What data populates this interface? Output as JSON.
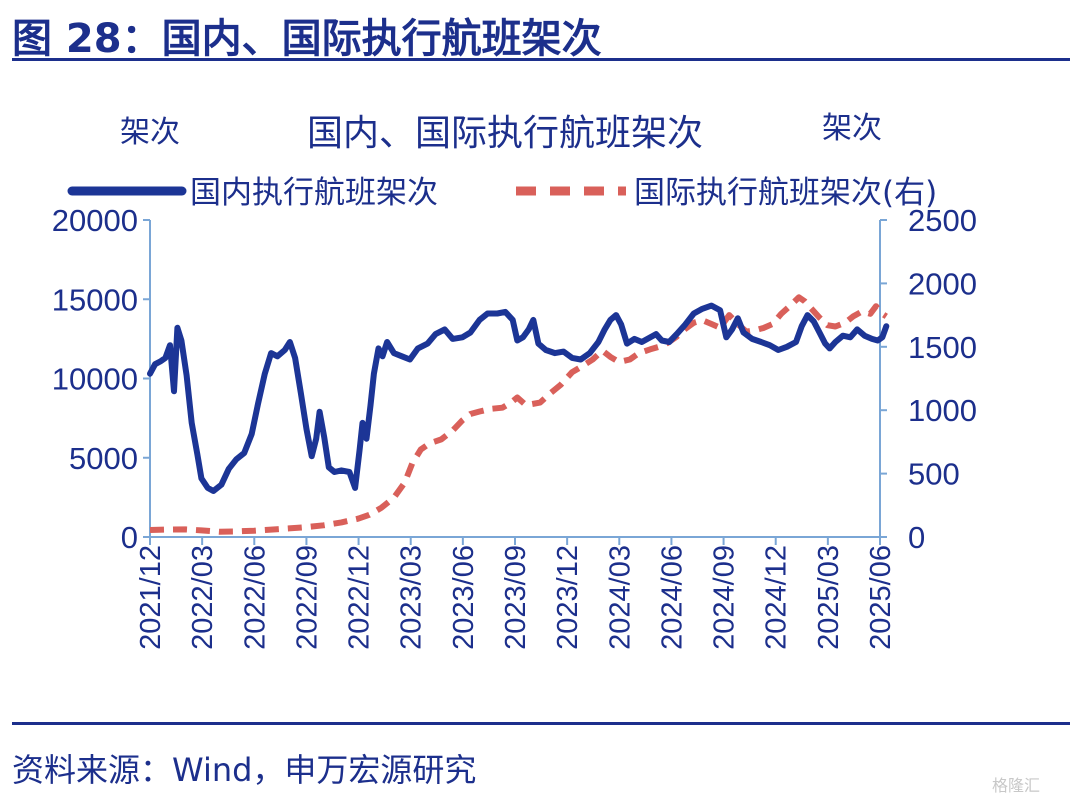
{
  "figure": {
    "title": "图 28：国内、国际执行航班架次",
    "source": "资料来源：Wind，申万宏源研究",
    "watermark": "格隆汇"
  },
  "colors": {
    "domestic": "#1c3596",
    "international": "#d9605a",
    "axis": "#7aa6d6",
    "text": "#1c2f8c"
  },
  "chart_data": {
    "type": "line",
    "title": "国内、国际执行航班架次",
    "ylabel_left": "架次",
    "ylabel_right": "架次",
    "legend_position": "top",
    "grid": false,
    "ylim_left": [
      0,
      20000
    ],
    "ylim_right": [
      0,
      2500
    ],
    "yticks_left": [
      "0",
      "5000",
      "10000",
      "15000",
      "20000"
    ],
    "yticks_right": [
      "0",
      "500",
      "1000",
      "1500",
      "2000",
      "2500"
    ],
    "xticks": [
      "2021/12",
      "2022/03",
      "2022/06",
      "2022/09",
      "2022/12",
      "2023/03",
      "2023/06",
      "2023/09",
      "2023/12",
      "2024/03",
      "2024/06",
      "2024/09",
      "2024/12",
      "2025/03",
      "2025/06"
    ],
    "series": [
      {
        "name": "国内执行航班架次",
        "axis": "left",
        "style": "solid",
        "points": [
          [
            "2021-12-01",
            10300
          ],
          [
            "2021-12-10",
            10900
          ],
          [
            "2021-12-20",
            11100
          ],
          [
            "2021-12-28",
            11300
          ],
          [
            "2022-01-05",
            12100
          ],
          [
            "2022-01-12",
            9200
          ],
          [
            "2022-01-18",
            13200
          ],
          [
            "2022-01-25",
            12400
          ],
          [
            "2022-02-03",
            10200
          ],
          [
            "2022-02-12",
            7200
          ],
          [
            "2022-02-22",
            5200
          ],
          [
            "2022-03-01",
            3700
          ],
          [
            "2022-03-12",
            3100
          ],
          [
            "2022-03-22",
            2900
          ],
          [
            "2022-04-05",
            3300
          ],
          [
            "2022-04-18",
            4300
          ],
          [
            "2022-05-01",
            4900
          ],
          [
            "2022-05-15",
            5300
          ],
          [
            "2022-05-28",
            6500
          ],
          [
            "2022-06-08",
            8400
          ],
          [
            "2022-06-20",
            10300
          ],
          [
            "2022-07-01",
            11600
          ],
          [
            "2022-07-12",
            11400
          ],
          [
            "2022-07-25",
            11800
          ],
          [
            "2022-08-03",
            12300
          ],
          [
            "2022-08-12",
            11300
          ],
          [
            "2022-08-22",
            9100
          ],
          [
            "2022-09-01",
            6800
          ],
          [
            "2022-09-10",
            5100
          ],
          [
            "2022-09-18",
            6200
          ],
          [
            "2022-09-24",
            7900
          ],
          [
            "2022-10-02",
            6300
          ],
          [
            "2022-10-10",
            4400
          ],
          [
            "2022-10-20",
            4100
          ],
          [
            "2022-11-01",
            4200
          ],
          [
            "2022-11-15",
            4100
          ],
          [
            "2022-11-25",
            3100
          ],
          [
            "2022-12-03",
            5500
          ],
          [
            "2022-12-08",
            7200
          ],
          [
            "2022-12-15",
            6200
          ],
          [
            "2022-12-22",
            8300
          ],
          [
            "2022-12-28",
            10300
          ],
          [
            "2023-01-05",
            11900
          ],
          [
            "2023-01-12",
            11400
          ],
          [
            "2023-01-20",
            12300
          ],
          [
            "2023-02-01",
            11600
          ],
          [
            "2023-02-15",
            11400
          ],
          [
            "2023-03-01",
            11200
          ],
          [
            "2023-03-15",
            11900
          ],
          [
            "2023-04-01",
            12200
          ],
          [
            "2023-04-15",
            12800
          ],
          [
            "2023-05-01",
            13100
          ],
          [
            "2023-05-15",
            12500
          ],
          [
            "2023-06-01",
            12600
          ],
          [
            "2023-06-15",
            12900
          ],
          [
            "2023-07-01",
            13700
          ],
          [
            "2023-07-15",
            14100
          ],
          [
            "2023-08-01",
            14100
          ],
          [
            "2023-08-15",
            14200
          ],
          [
            "2023-08-28",
            13700
          ],
          [
            "2023-09-05",
            12400
          ],
          [
            "2023-09-15",
            12600
          ],
          [
            "2023-09-25",
            13100
          ],
          [
            "2023-10-03",
            13700
          ],
          [
            "2023-10-12",
            12200
          ],
          [
            "2023-10-25",
            11800
          ],
          [
            "2023-11-10",
            11600
          ],
          [
            "2023-11-25",
            11700
          ],
          [
            "2023-12-10",
            11300
          ],
          [
            "2023-12-25",
            11200
          ],
          [
            "2024-01-10",
            11600
          ],
          [
            "2024-01-25",
            12300
          ],
          [
            "2024-02-05",
            13100
          ],
          [
            "2024-02-15",
            13700
          ],
          [
            "2024-02-25",
            14000
          ],
          [
            "2024-03-05",
            13400
          ],
          [
            "2024-03-15",
            12200
          ],
          [
            "2024-03-28",
            12500
          ],
          [
            "2024-04-10",
            12300
          ],
          [
            "2024-04-25",
            12600
          ],
          [
            "2024-05-05",
            12800
          ],
          [
            "2024-05-15",
            12400
          ],
          [
            "2024-05-28",
            12300
          ],
          [
            "2024-06-10",
            12800
          ],
          [
            "2024-06-25",
            13400
          ],
          [
            "2024-07-10",
            14100
          ],
          [
            "2024-07-25",
            14400
          ],
          [
            "2024-08-10",
            14600
          ],
          [
            "2024-08-25",
            14300
          ],
          [
            "2024-09-05",
            12600
          ],
          [
            "2024-09-15",
            13100
          ],
          [
            "2024-09-25",
            13800
          ],
          [
            "2024-10-05",
            12900
          ],
          [
            "2024-10-20",
            12500
          ],
          [
            "2024-11-05",
            12300
          ],
          [
            "2024-11-20",
            12100
          ],
          [
            "2024-12-05",
            11800
          ],
          [
            "2024-12-20",
            12000
          ],
          [
            "2025-01-05",
            12300
          ],
          [
            "2025-01-15",
            13300
          ],
          [
            "2025-01-25",
            14000
          ],
          [
            "2025-02-05",
            13600
          ],
          [
            "2025-02-15",
            12900
          ],
          [
            "2025-02-25",
            12200
          ],
          [
            "2025-03-05",
            11900
          ],
          [
            "2025-03-15",
            12300
          ],
          [
            "2025-03-28",
            12700
          ],
          [
            "2025-04-10",
            12600
          ],
          [
            "2025-04-22",
            13100
          ],
          [
            "2025-05-05",
            12700
          ],
          [
            "2025-05-18",
            12500
          ],
          [
            "2025-05-28",
            12400
          ],
          [
            "2025-06-05",
            12600
          ],
          [
            "2025-06-12",
            13300
          ]
        ]
      },
      {
        "name": "国际执行航班架次(右)",
        "axis": "right",
        "style": "dashed",
        "points": [
          [
            "2021-12-01",
            55
          ],
          [
            "2022-01-01",
            58
          ],
          [
            "2022-02-01",
            60
          ],
          [
            "2022-03-01",
            52
          ],
          [
            "2022-04-01",
            42
          ],
          [
            "2022-05-01",
            44
          ],
          [
            "2022-06-01",
            50
          ],
          [
            "2022-07-01",
            58
          ],
          [
            "2022-08-01",
            68
          ],
          [
            "2022-09-01",
            78
          ],
          [
            "2022-10-01",
            92
          ],
          [
            "2022-11-01",
            115
          ],
          [
            "2022-12-01",
            145
          ],
          [
            "2022-12-20",
            175
          ],
          [
            "2023-01-10",
            230
          ],
          [
            "2023-02-01",
            310
          ],
          [
            "2023-02-20",
            430
          ],
          [
            "2023-03-05",
            580
          ],
          [
            "2023-03-20",
            690
          ],
          [
            "2023-04-05",
            740
          ],
          [
            "2023-04-25",
            770
          ],
          [
            "2023-05-15",
            840
          ],
          [
            "2023-06-01",
            920
          ],
          [
            "2023-06-15",
            970
          ],
          [
            "2023-07-01",
            990
          ],
          [
            "2023-07-20",
            1010
          ],
          [
            "2023-08-10",
            1020
          ],
          [
            "2023-08-25",
            1060
          ],
          [
            "2023-09-05",
            1100
          ],
          [
            "2023-09-20",
            1040
          ],
          [
            "2023-10-15",
            1060
          ],
          [
            "2023-11-01",
            1130
          ],
          [
            "2023-11-20",
            1200
          ],
          [
            "2023-12-10",
            1300
          ],
          [
            "2023-12-25",
            1340
          ],
          [
            "2024-01-15",
            1400
          ],
          [
            "2024-02-01",
            1470
          ],
          [
            "2024-02-15",
            1420
          ],
          [
            "2024-03-01",
            1380
          ],
          [
            "2024-03-20",
            1400
          ],
          [
            "2024-04-05",
            1450
          ],
          [
            "2024-04-25",
            1480
          ],
          [
            "2024-05-10",
            1500
          ],
          [
            "2024-05-25",
            1530
          ],
          [
            "2024-06-10",
            1580
          ],
          [
            "2024-06-25",
            1640
          ],
          [
            "2024-07-10",
            1690
          ],
          [
            "2024-07-25",
            1710
          ],
          [
            "2024-08-10",
            1680
          ],
          [
            "2024-08-25",
            1650
          ],
          [
            "2024-09-10",
            1750
          ],
          [
            "2024-09-25",
            1680
          ],
          [
            "2024-10-10",
            1620
          ],
          [
            "2024-10-25",
            1630
          ],
          [
            "2024-11-10",
            1650
          ],
          [
            "2024-11-25",
            1680
          ],
          [
            "2024-12-10",
            1760
          ],
          [
            "2024-12-25",
            1820
          ],
          [
            "2025-01-10",
            1890
          ],
          [
            "2025-01-20",
            1860
          ],
          [
            "2025-02-01",
            1800
          ],
          [
            "2025-02-15",
            1730
          ],
          [
            "2025-03-01",
            1670
          ],
          [
            "2025-03-15",
            1660
          ],
          [
            "2025-04-01",
            1690
          ],
          [
            "2025-04-15",
            1740
          ],
          [
            "2025-05-01",
            1780
          ],
          [
            "2025-05-15",
            1760
          ],
          [
            "2025-05-25",
            1820
          ],
          [
            "2025-06-05",
            1760
          ],
          [
            "2025-06-12",
            1740
          ]
        ]
      }
    ]
  }
}
